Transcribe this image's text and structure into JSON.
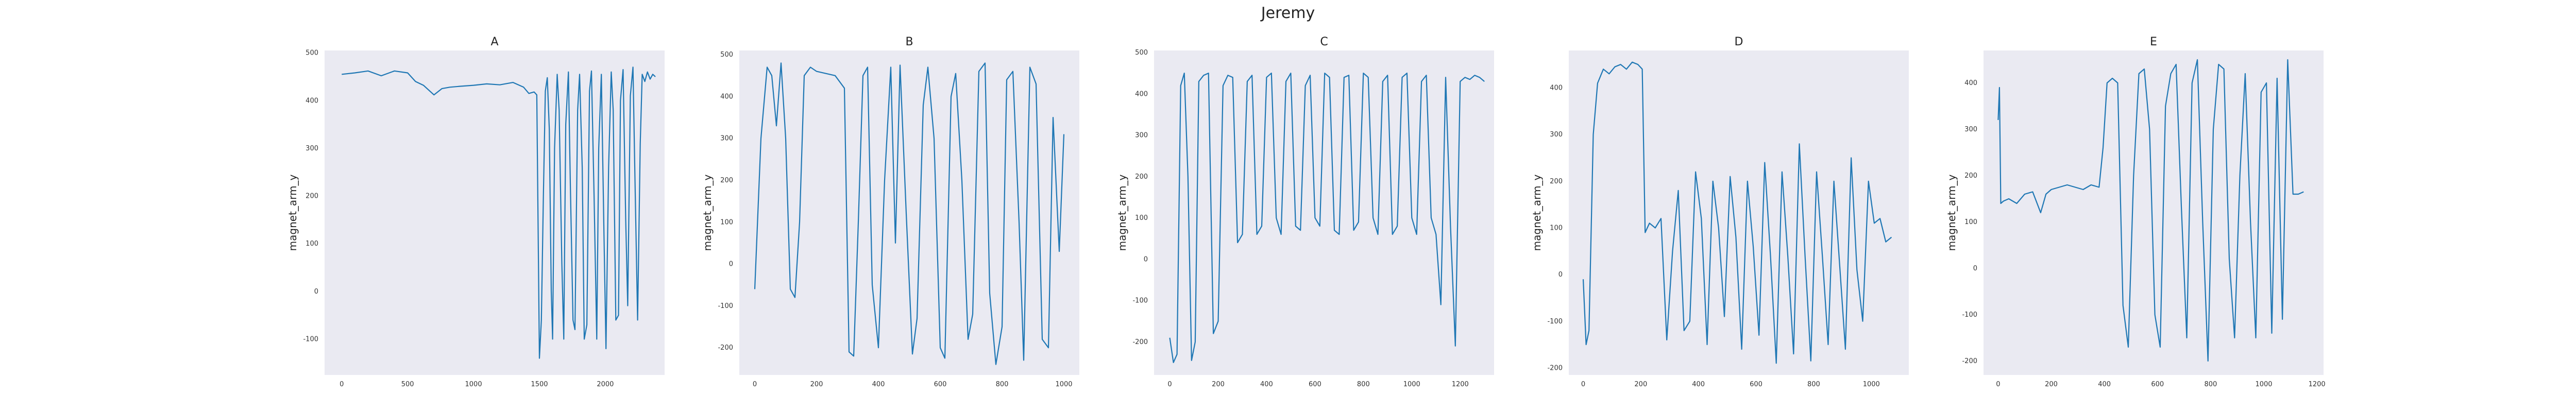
{
  "figure": {
    "title": "Jeremy"
  },
  "colors": {
    "line": "#1f77b4",
    "plot_bg": "#eaeaf2",
    "page_bg": "#ffffff"
  },
  "chart_data": [
    {
      "type": "line",
      "title": "A",
      "xlabel": "",
      "ylabel": "magnet_arm_y",
      "grid": false,
      "xlim": [
        -130,
        2450
      ],
      "ylim": [
        -175,
        505
      ],
      "xticks": [
        0,
        500,
        1000,
        1500,
        2000
      ],
      "yticks": [
        -100,
        0,
        100,
        200,
        300,
        400,
        500
      ],
      "x": [
        0,
        100,
        200,
        300,
        400,
        500,
        560,
        620,
        700,
        760,
        820,
        900,
        1000,
        1100,
        1200,
        1300,
        1380,
        1420,
        1460,
        1480,
        1500,
        1515,
        1530,
        1545,
        1560,
        1575,
        1590,
        1600,
        1615,
        1635,
        1650,
        1670,
        1685,
        1700,
        1720,
        1735,
        1755,
        1770,
        1790,
        1805,
        1825,
        1840,
        1860,
        1880,
        1895,
        1915,
        1935,
        1950,
        1970,
        1990,
        2005,
        2025,
        2045,
        2060,
        2080,
        2100,
        2115,
        2135,
        2155,
        2170,
        2190,
        2210,
        2225,
        2245,
        2265,
        2280,
        2300,
        2320,
        2340,
        2360,
        2380
      ],
      "series": [
        {
          "values": [
            455,
            458,
            462,
            452,
            462,
            458,
            440,
            432,
            412,
            425,
            428,
            430,
            432,
            435,
            433,
            438,
            428,
            415,
            418,
            412,
            -140,
            -60,
            200,
            420,
            448,
            340,
            0,
            -100,
            300,
            455,
            380,
            60,
            -100,
            350,
            460,
            220,
            -60,
            -80,
            380,
            455,
            260,
            -100,
            -70,
            420,
            462,
            200,
            -100,
            300,
            455,
            120,
            -120,
            260,
            460,
            380,
            -60,
            -50,
            400,
            465,
            150,
            -30,
            410,
            470,
            240,
            -60,
            310,
            455,
            440,
            460,
            445,
            455,
            450
          ]
        }
      ]
    },
    {
      "type": "line",
      "title": "B",
      "xlabel": "",
      "ylabel": "magnet_arm_y",
      "grid": false,
      "xlim": [
        -50,
        1050
      ],
      "ylim": [
        -265,
        510
      ],
      "xticks": [
        0,
        200,
        400,
        600,
        800,
        1000
      ],
      "yticks": [
        -200,
        -100,
        0,
        100,
        200,
        300,
        400,
        500
      ],
      "x": [
        0,
        20,
        40,
        55,
        70,
        85,
        100,
        115,
        130,
        145,
        160,
        180,
        200,
        230,
        260,
        290,
        305,
        320,
        335,
        350,
        365,
        380,
        400,
        420,
        440,
        455,
        470,
        490,
        510,
        525,
        545,
        560,
        580,
        600,
        615,
        635,
        650,
        670,
        690,
        705,
        725,
        745,
        760,
        780,
        800,
        815,
        835,
        855,
        870,
        890,
        910,
        930,
        950,
        965,
        985,
        1000
      ],
      "series": [
        {
          "values": [
            -60,
            300,
            470,
            450,
            330,
            480,
            300,
            -60,
            -80,
            100,
            450,
            470,
            460,
            455,
            450,
            420,
            -210,
            -220,
            100,
            450,
            470,
            -50,
            -200,
            200,
            470,
            50,
            475,
            120,
            -215,
            -130,
            380,
            470,
            300,
            -200,
            -225,
            400,
            455,
            200,
            -180,
            -120,
            460,
            480,
            -70,
            -240,
            -150,
            440,
            460,
            100,
            -230,
            470,
            430,
            -180,
            -200,
            350,
            30,
            310
          ]
        }
      ]
    },
    {
      "type": "line",
      "title": "C",
      "xlabel": "",
      "ylabel": "magnet_arm_y",
      "grid": false,
      "xlim": [
        -65,
        1340
      ],
      "ylim": [
        -280,
        505
      ],
      "xticks": [
        0,
        200,
        400,
        600,
        800,
        1000,
        1200
      ],
      "yticks": [
        -200,
        -100,
        0,
        100,
        200,
        300,
        400,
        500
      ],
      "x": [
        0,
        15,
        30,
        45,
        60,
        75,
        90,
        105,
        120,
        140,
        160,
        180,
        200,
        220,
        240,
        260,
        280,
        300,
        320,
        340,
        360,
        380,
        400,
        420,
        440,
        460,
        480,
        500,
        520,
        540,
        560,
        580,
        600,
        620,
        640,
        660,
        680,
        700,
        720,
        740,
        760,
        780,
        800,
        820,
        840,
        860,
        880,
        900,
        920,
        940,
        960,
        980,
        1000,
        1020,
        1040,
        1060,
        1080,
        1100,
        1120,
        1140,
        1160,
        1180,
        1200,
        1220,
        1240,
        1260,
        1280,
        1300
      ],
      "series": [
        {
          "values": [
            -190,
            -250,
            -230,
            420,
            450,
            200,
            -245,
            -200,
            430,
            445,
            450,
            -180,
            -150,
            420,
            445,
            440,
            40,
            60,
            430,
            445,
            60,
            80,
            440,
            450,
            100,
            60,
            430,
            450,
            80,
            70,
            420,
            445,
            100,
            80,
            450,
            440,
            70,
            60,
            440,
            445,
            70,
            90,
            450,
            440,
            100,
            60,
            430,
            445,
            60,
            80,
            440,
            450,
            100,
            60,
            430,
            445,
            100,
            60,
            -110,
            440,
            80,
            -210,
            430,
            440,
            435,
            445,
            440,
            430
          ]
        }
      ]
    },
    {
      "type": "line",
      "title": "D",
      "xlabel": "",
      "ylabel": "magnet_arm_y",
      "grid": false,
      "xlim": [
        -50,
        1130
      ],
      "ylim": [
        -215,
        480
      ],
      "xticks": [
        0,
        200,
        400,
        600,
        800,
        1000
      ],
      "yticks": [
        -200,
        -100,
        0,
        100,
        200,
        300,
        400
      ],
      "x": [
        0,
        10,
        20,
        35,
        50,
        70,
        90,
        110,
        130,
        150,
        170,
        190,
        205,
        215,
        230,
        250,
        270,
        290,
        310,
        330,
        350,
        370,
        390,
        410,
        430,
        450,
        470,
        490,
        510,
        530,
        550,
        570,
        590,
        610,
        630,
        650,
        670,
        690,
        710,
        730,
        750,
        770,
        790,
        810,
        830,
        850,
        870,
        890,
        910,
        930,
        950,
        970,
        990,
        1010,
        1030,
        1050,
        1070
      ],
      "series": [
        {
          "values": [
            -10,
            -150,
            -120,
            300,
            410,
            440,
            430,
            445,
            450,
            440,
            455,
            450,
            440,
            90,
            110,
            100,
            120,
            -140,
            50,
            180,
            -120,
            -100,
            220,
            120,
            -150,
            200,
            100,
            -90,
            210,
            80,
            -160,
            200,
            60,
            -130,
            240,
            40,
            -190,
            220,
            40,
            -170,
            280,
            40,
            -185,
            220,
            40,
            -150,
            200,
            20,
            -160,
            250,
            10,
            -100,
            200,
            110,
            120,
            70,
            80
          ]
        }
      ]
    },
    {
      "type": "line",
      "title": "E",
      "xlabel": "",
      "ylabel": "magnet_arm_y",
      "grid": false,
      "xlim": [
        -55,
        1225
      ],
      "ylim": [
        -230,
        470
      ],
      "xticks": [
        0,
        200,
        400,
        600,
        800,
        1000,
        1200
      ],
      "yticks": [
        -200,
        -100,
        0,
        100,
        200,
        300,
        400
      ],
      "x": [
        0,
        5,
        10,
        20,
        40,
        70,
        100,
        130,
        160,
        180,
        200,
        230,
        260,
        290,
        320,
        350,
        380,
        395,
        410,
        430,
        450,
        470,
        490,
        510,
        530,
        550,
        570,
        590,
        610,
        630,
        650,
        670,
        690,
        710,
        730,
        750,
        770,
        790,
        810,
        830,
        850,
        870,
        890,
        910,
        930,
        950,
        970,
        990,
        1010,
        1030,
        1050,
        1070,
        1090,
        1110,
        1130,
        1150
      ],
      "series": [
        {
          "values": [
            320,
            390,
            140,
            145,
            150,
            140,
            160,
            165,
            120,
            160,
            170,
            175,
            180,
            175,
            170,
            180,
            175,
            260,
            400,
            410,
            400,
            -80,
            -170,
            200,
            420,
            430,
            300,
            -100,
            -170,
            350,
            420,
            440,
            130,
            -150,
            400,
            450,
            100,
            -200,
            300,
            440,
            430,
            20,
            -150,
            200,
            420,
            100,
            -150,
            380,
            400,
            -140,
            410,
            -110,
            450,
            160,
            160,
            165
          ]
        }
      ]
    }
  ]
}
